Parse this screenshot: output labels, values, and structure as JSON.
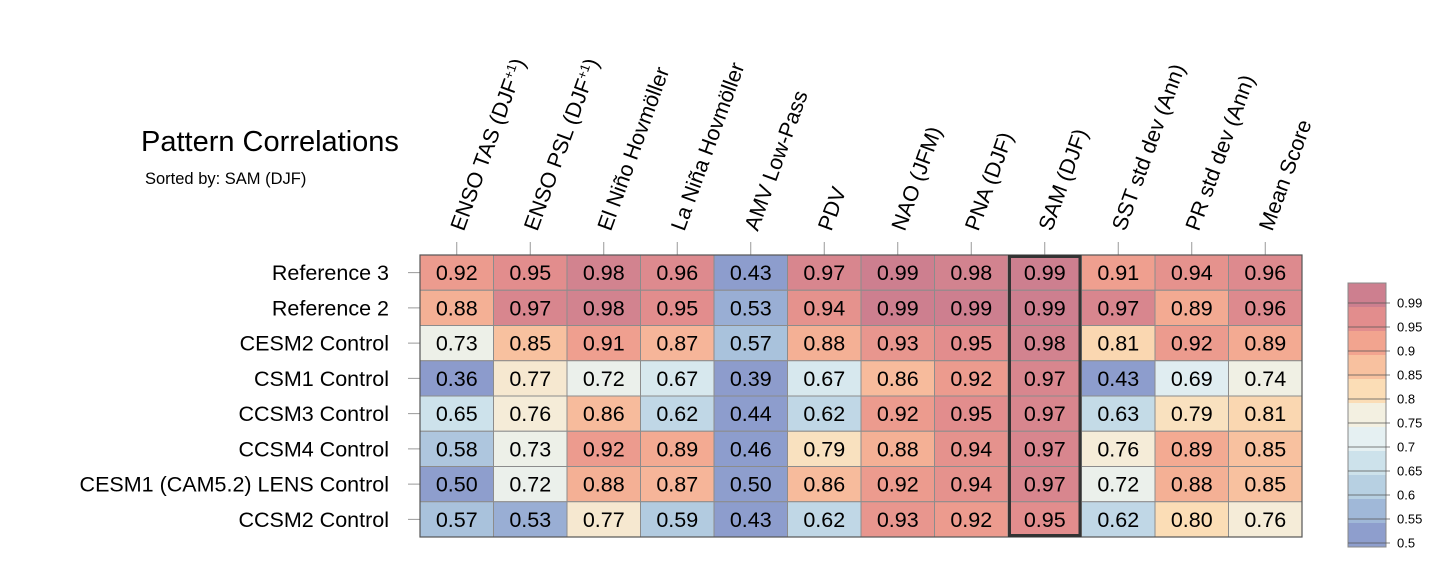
{
  "chart_data": {
    "type": "heatmap",
    "title": "Pattern Correlations",
    "subtitle": "Sorted by: SAM (DJF)",
    "highlighted_column": "SAM (DJF)",
    "columns": [
      {
        "pre": "ENSO TAS (DJF",
        "sup": "+1",
        "post": ")"
      },
      {
        "pre": "ENSO PSL (DJF",
        "sup": "+1",
        "post": ")"
      },
      {
        "pre": "El Niño Hovmöller",
        "sup": "",
        "post": ""
      },
      {
        "pre": "La Niña Hovmöller",
        "sup": "",
        "post": ""
      },
      {
        "pre": "AMV Low-Pass",
        "sup": "",
        "post": ""
      },
      {
        "pre": "PDV",
        "sup": "",
        "post": ""
      },
      {
        "pre": "NAO (JFM)",
        "sup": "",
        "post": ""
      },
      {
        "pre": "PNA (DJF)",
        "sup": "",
        "post": ""
      },
      {
        "pre": "SAM (DJF)",
        "sup": "",
        "post": ""
      },
      {
        "pre": "SST std dev (Ann)",
        "sup": "",
        "post": ""
      },
      {
        "pre": "PR std dev (Ann)",
        "sup": "",
        "post": ""
      },
      {
        "pre": "Mean Score",
        "sup": "",
        "post": ""
      }
    ],
    "rows": [
      "Reference 3",
      "Reference 2",
      "CESM2 Control",
      "CSM1 Control",
      "CCSM3 Control",
      "CCSM4 Control",
      "CESM1 (CAM5.2) LENS Control",
      "CCSM2 Control"
    ],
    "values": [
      [
        "0.92",
        "0.95",
        "0.98",
        "0.96",
        "0.43",
        "0.97",
        "0.99",
        "0.98",
        "0.99",
        "0.91",
        "0.94",
        "0.96"
      ],
      [
        "0.88",
        "0.97",
        "0.98",
        "0.95",
        "0.53",
        "0.94",
        "0.99",
        "0.99",
        "0.99",
        "0.97",
        "0.89",
        "0.96"
      ],
      [
        "0.73",
        "0.85",
        "0.91",
        "0.87",
        "0.57",
        "0.88",
        "0.93",
        "0.95",
        "0.98",
        "0.81",
        "0.92",
        "0.89"
      ],
      [
        "0.36",
        "0.77",
        "0.72",
        "0.67",
        "0.39",
        "0.67",
        "0.86",
        "0.92",
        "0.97",
        "0.43",
        "0.69",
        "0.74"
      ],
      [
        "0.65",
        "0.76",
        "0.86",
        "0.62",
        "0.44",
        "0.62",
        "0.92",
        "0.95",
        "0.97",
        "0.63",
        "0.79",
        "0.81"
      ],
      [
        "0.58",
        "0.73",
        "0.92",
        "0.89",
        "0.46",
        "0.79",
        "0.88",
        "0.94",
        "0.97",
        "0.76",
        "0.89",
        "0.85"
      ],
      [
        "0.50",
        "0.72",
        "0.88",
        "0.87",
        "0.50",
        "0.86",
        "0.92",
        "0.94",
        "0.97",
        "0.72",
        "0.88",
        "0.85"
      ],
      [
        "0.57",
        "0.53",
        "0.77",
        "0.59",
        "0.43",
        "0.62",
        "0.93",
        "0.92",
        "0.95",
        "0.62",
        "0.80",
        "0.76"
      ]
    ],
    "legend": {
      "labels": [
        "0.99",
        "0.95",
        "0.9",
        "0.85",
        "0.8",
        "0.75",
        "0.7",
        "0.65",
        "0.6",
        "0.55",
        "0.5"
      ],
      "colors": [
        "#cd7f8f",
        "#e28d8d",
        "#f2a48f",
        "#f8c19f",
        "#fbddb6",
        "#f3f0e1",
        "#e5f0f2",
        "#cde2eb",
        "#b7d0e2",
        "#a0b8d8",
        "#8e9ecd"
      ]
    }
  }
}
